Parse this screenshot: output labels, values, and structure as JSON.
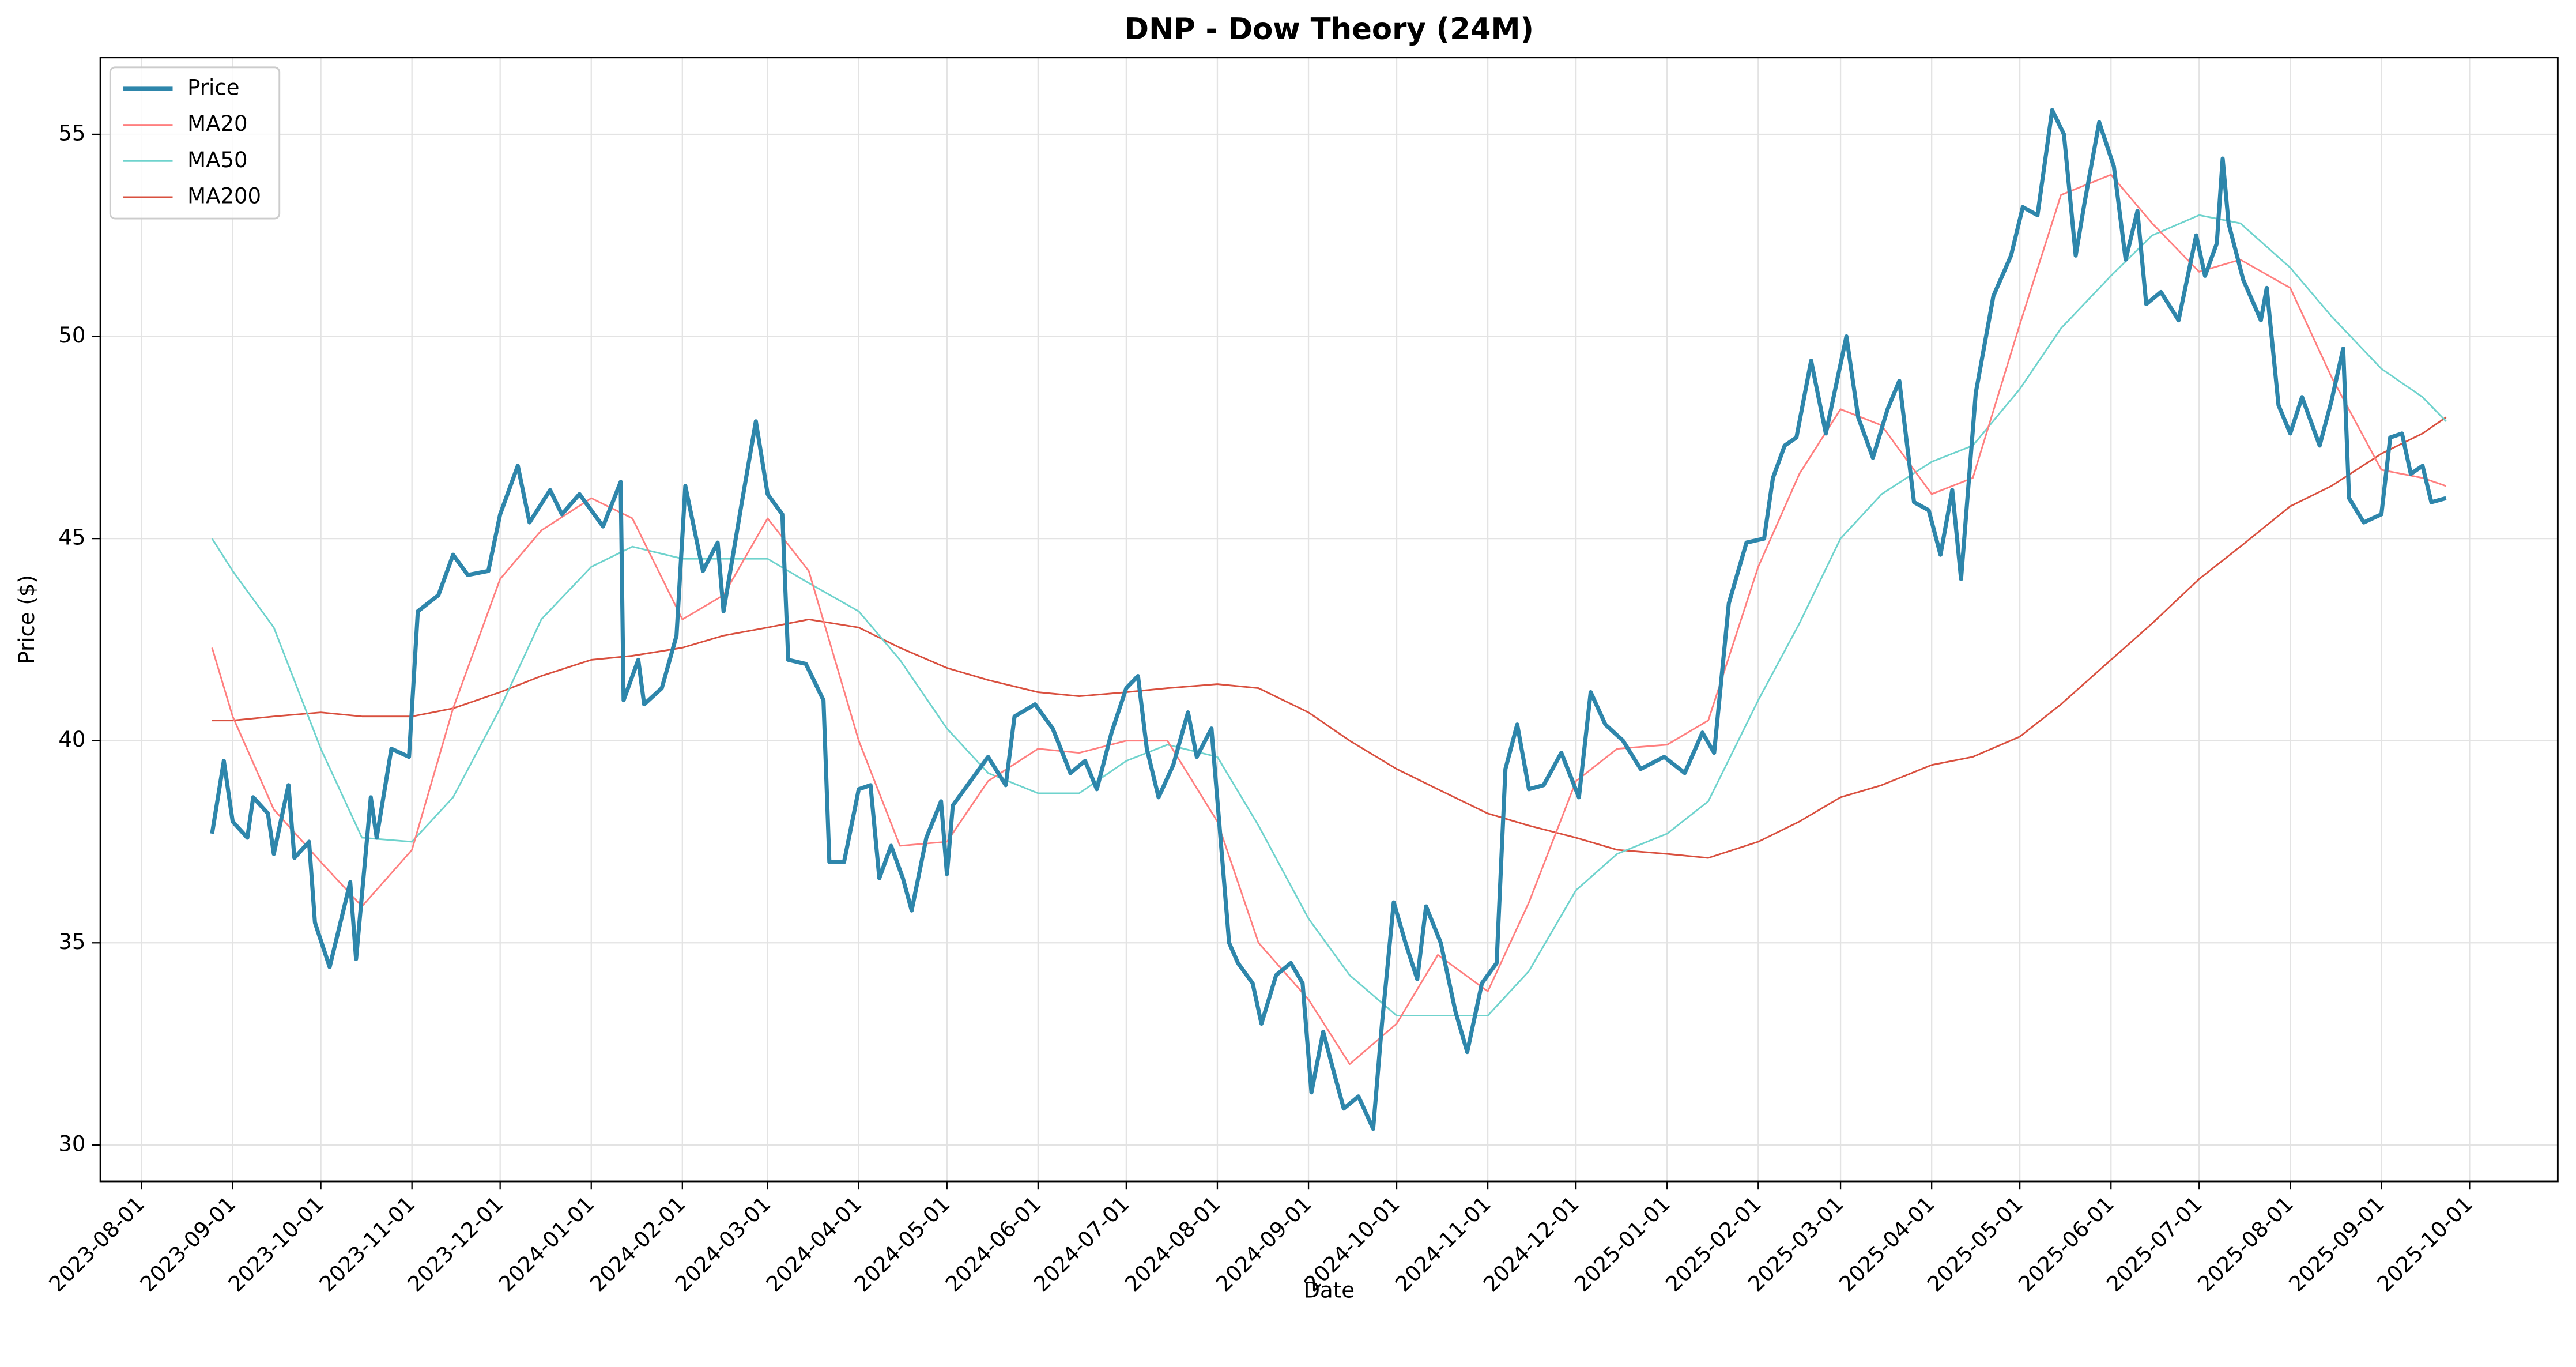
{
  "chart_data": {
    "type": "line",
    "title": "DNP - Dow Theory (24M)",
    "x_label": "Date",
    "y_label": "Price ($)",
    "xlim": [
      "2023-07-18",
      "2025-10-31"
    ],
    "xticks": [
      "2023-08-01",
      "2023-09-01",
      "2023-10-01",
      "2023-11-01",
      "2023-12-01",
      "2024-01-01",
      "2024-02-01",
      "2024-03-01",
      "2024-04-01",
      "2024-05-01",
      "2024-06-01",
      "2024-07-01",
      "2024-08-01",
      "2024-09-01",
      "2024-10-01",
      "2024-11-01",
      "2024-12-01",
      "2025-01-01",
      "2025-02-01",
      "2025-03-01",
      "2025-04-01",
      "2025-05-01",
      "2025-06-01",
      "2025-07-01",
      "2025-08-01",
      "2025-09-01",
      "2025-10-01"
    ],
    "ylim": [
      29.1,
      56.9
    ],
    "yticks": [
      30,
      35,
      40,
      45,
      50,
      55
    ],
    "grid": true,
    "legend": "upper left",
    "series": [
      {
        "name": "Price",
        "color": "#2e86ab",
        "width": 2.5,
        "x": [
          "2023-08-25",
          "2023-08-29",
          "2023-09-01",
          "2023-09-06",
          "2023-09-08",
          "2023-09-13",
          "2023-09-15",
          "2023-09-20",
          "2023-09-22",
          "2023-09-27",
          "2023-09-29",
          "2023-10-04",
          "2023-10-11",
          "2023-10-13",
          "2023-10-18",
          "2023-10-20",
          "2023-10-25",
          "2023-10-31",
          "2023-11-03",
          "2023-11-10",
          "2023-11-15",
          "2023-11-20",
          "2023-11-27",
          "2023-12-01",
          "2023-12-07",
          "2023-12-11",
          "2023-12-18",
          "2023-12-22",
          "2023-12-28",
          "2024-01-05",
          "2024-01-11",
          "2024-01-12",
          "2024-01-17",
          "2024-01-19",
          "2024-01-25",
          "2024-01-30",
          "2024-02-02",
          "2024-02-08",
          "2024-02-13",
          "2024-02-15",
          "2024-02-21",
          "2024-02-26",
          "2024-03-01",
          "2024-03-06",
          "2024-03-08",
          "2024-03-14",
          "2024-03-20",
          "2024-03-22",
          "2024-03-27",
          "2024-04-01",
          "2024-04-05",
          "2024-04-08",
          "2024-04-12",
          "2024-04-16",
          "2024-04-19",
          "2024-04-24",
          "2024-04-29",
          "2024-05-01",
          "2024-05-03",
          "2024-05-08",
          "2024-05-15",
          "2024-05-21",
          "2024-05-24",
          "2024-05-31",
          "2024-06-06",
          "2024-06-12",
          "2024-06-17",
          "2024-06-21",
          "2024-06-26",
          "2024-07-01",
          "2024-07-05",
          "2024-07-08",
          "2024-07-12",
          "2024-07-17",
          "2024-07-22",
          "2024-07-25",
          "2024-07-30",
          "2024-08-05",
          "2024-08-08",
          "2024-08-13",
          "2024-08-16",
          "2024-08-21",
          "2024-08-26",
          "2024-08-30",
          "2024-09-02",
          "2024-09-06",
          "2024-09-10",
          "2024-09-13",
          "2024-09-18",
          "2024-09-23",
          "2024-09-26",
          "2024-09-30",
          "2024-10-04",
          "2024-10-08",
          "2024-10-11",
          "2024-10-16",
          "2024-10-21",
          "2024-10-25",
          "2024-10-30",
          "2024-11-04",
          "2024-11-07",
          "2024-11-11",
          "2024-11-15",
          "2024-11-20",
          "2024-11-26",
          "2024-12-02",
          "2024-12-06",
          "2024-12-11",
          "2024-12-17",
          "2024-12-23",
          "2024-12-31",
          "2025-01-07",
          "2025-01-13",
          "2025-01-17",
          "2025-01-22",
          "2025-01-28",
          "2025-02-03",
          "2025-02-06",
          "2025-02-10",
          "2025-02-14",
          "2025-02-19",
          "2025-02-24",
          "2025-03-03",
          "2025-03-07",
          "2025-03-12",
          "2025-03-17",
          "2025-03-21",
          "2025-03-26",
          "2025-03-31",
          "2025-04-04",
          "2025-04-08",
          "2025-04-11",
          "2025-04-16",
          "2025-04-22",
          "2025-04-28",
          "2025-05-02",
          "2025-05-07",
          "2025-05-12",
          "2025-05-16",
          "2025-05-20",
          "2025-05-23",
          "2025-05-28",
          "2025-06-02",
          "2025-06-06",
          "2025-06-10",
          "2025-06-13",
          "2025-06-18",
          "2025-06-24",
          "2025-06-30",
          "2025-07-03",
          "2025-07-07",
          "2025-07-09",
          "2025-07-11",
          "2025-07-16",
          "2025-07-22",
          "2025-07-24",
          "2025-07-28",
          "2025-08-01",
          "2025-08-05",
          "2025-08-11",
          "2025-08-15",
          "2025-08-19",
          "2025-08-21",
          "2025-08-26",
          "2025-09-01",
          "2025-09-04",
          "2025-09-08",
          "2025-09-11",
          "2025-09-15",
          "2025-09-18",
          "2025-09-23"
        ],
        "values": [
          37.7,
          39.5,
          38.0,
          37.6,
          38.6,
          38.2,
          37.2,
          38.9,
          37.1,
          37.5,
          35.5,
          34.4,
          36.5,
          34.6,
          38.6,
          37.6,
          39.8,
          39.6,
          43.2,
          43.6,
          44.6,
          44.1,
          44.2,
          45.6,
          46.8,
          45.4,
          46.2,
          45.6,
          46.1,
          45.3,
          46.4,
          41.0,
          42.0,
          40.9,
          41.3,
          42.6,
          46.3,
          44.2,
          44.9,
          43.2,
          45.8,
          47.9,
          46.1,
          45.6,
          42.0,
          41.9,
          41.0,
          37.0,
          37.0,
          38.8,
          38.9,
          36.6,
          37.4,
          36.6,
          35.8,
          37.6,
          38.5,
          36.7,
          38.4,
          38.9,
          39.6,
          38.9,
          40.6,
          40.9,
          40.3,
          39.2,
          39.5,
          38.8,
          40.2,
          41.3,
          41.6,
          39.8,
          38.6,
          39.4,
          40.7,
          39.6,
          40.3,
          35.0,
          34.5,
          34.0,
          33.0,
          34.2,
          34.5,
          34.0,
          31.3,
          32.8,
          31.7,
          30.9,
          31.2,
          30.4,
          33.0,
          36.0,
          35.0,
          34.1,
          35.9,
          35.0,
          33.3,
          32.3,
          34.0,
          34.5,
          39.3,
          40.4,
          38.8,
          38.9,
          39.7,
          38.6,
          41.2,
          40.4,
          40.0,
          39.3,
          39.6,
          39.2,
          40.2,
          39.7,
          43.4,
          44.9,
          45.0,
          46.5,
          47.3,
          47.5,
          49.4,
          47.6,
          50.0,
          48.0,
          47.0,
          48.2,
          48.9,
          45.9,
          45.7,
          44.6,
          46.2,
          44.0,
          48.6,
          51.0,
          52.0,
          53.2,
          53.0,
          55.6,
          55.0,
          52.0,
          53.3,
          55.3,
          54.2,
          51.9,
          53.1,
          50.8,
          51.1,
          50.4,
          52.5,
          51.5,
          52.3,
          54.4,
          52.8,
          51.4,
          50.4,
          51.2,
          48.3,
          47.6,
          48.5,
          47.3,
          48.4,
          49.7,
          46.0,
          45.4,
          45.6,
          47.5,
          47.6,
          46.6,
          46.8,
          45.9,
          46.0
        ]
      },
      {
        "name": "MA20",
        "color": "#ff7f7f",
        "width": 1,
        "x": [
          "2023-08-25",
          "2023-09-01",
          "2023-09-15",
          "2023-10-01",
          "2023-10-15",
          "2023-11-01",
          "2023-11-15",
          "2023-12-01",
          "2023-12-15",
          "2024-01-01",
          "2024-01-15",
          "2024-02-01",
          "2024-02-15",
          "2024-03-01",
          "2024-03-15",
          "2024-04-01",
          "2024-04-15",
          "2024-05-01",
          "2024-05-15",
          "2024-06-01",
          "2024-06-15",
          "2024-07-01",
          "2024-07-15",
          "2024-08-01",
          "2024-08-15",
          "2024-09-01",
          "2024-09-15",
          "2024-10-01",
          "2024-10-15",
          "2024-11-01",
          "2024-11-15",
          "2024-12-01",
          "2024-12-15",
          "2025-01-01",
          "2025-01-15",
          "2025-02-01",
          "2025-02-15",
          "2025-03-01",
          "2025-03-15",
          "2025-04-01",
          "2025-04-15",
          "2025-05-01",
          "2025-05-15",
          "2025-06-01",
          "2025-06-15",
          "2025-07-01",
          "2025-07-15",
          "2025-08-01",
          "2025-08-15",
          "2025-09-01",
          "2025-09-15",
          "2025-09-23"
        ],
        "values": [
          42.3,
          40.6,
          38.3,
          37.0,
          35.9,
          37.3,
          40.8,
          44.0,
          45.2,
          46.0,
          45.5,
          43.0,
          43.6,
          45.5,
          44.2,
          40.0,
          37.4,
          37.5,
          39.0,
          39.8,
          39.7,
          40.0,
          40.0,
          38.0,
          35.0,
          33.6,
          32.0,
          33.0,
          34.7,
          33.8,
          36.0,
          39.0,
          39.8,
          39.9,
          40.5,
          44.3,
          46.6,
          48.2,
          47.8,
          46.1,
          46.5,
          50.3,
          53.5,
          54.0,
          52.8,
          51.6,
          51.9,
          51.2,
          49.0,
          46.7,
          46.5,
          46.3
        ]
      },
      {
        "name": "MA50",
        "color": "#6fd3cd",
        "width": 1,
        "x": [
          "2023-08-25",
          "2023-09-01",
          "2023-09-15",
          "2023-10-01",
          "2023-10-15",
          "2023-11-01",
          "2023-11-15",
          "2023-12-01",
          "2023-12-15",
          "2024-01-01",
          "2024-01-15",
          "2024-02-01",
          "2024-02-15",
          "2024-03-01",
          "2024-03-15",
          "2024-04-01",
          "2024-04-15",
          "2024-05-01",
          "2024-05-15",
          "2024-06-01",
          "2024-06-15",
          "2024-07-01",
          "2024-07-15",
          "2024-08-01",
          "2024-08-15",
          "2024-09-01",
          "2024-09-15",
          "2024-10-01",
          "2024-10-15",
          "2024-11-01",
          "2024-11-15",
          "2024-12-01",
          "2024-12-15",
          "2025-01-01",
          "2025-01-15",
          "2025-02-01",
          "2025-02-15",
          "2025-03-01",
          "2025-03-15",
          "2025-04-01",
          "2025-04-15",
          "2025-05-01",
          "2025-05-15",
          "2025-06-01",
          "2025-06-15",
          "2025-07-01",
          "2025-07-15",
          "2025-08-01",
          "2025-08-15",
          "2025-09-01",
          "2025-09-15",
          "2025-09-23"
        ],
        "values": [
          45.0,
          44.2,
          42.8,
          39.8,
          37.6,
          37.5,
          38.6,
          40.8,
          43.0,
          44.3,
          44.8,
          44.5,
          44.5,
          44.5,
          43.9,
          43.2,
          42.0,
          40.3,
          39.2,
          38.7,
          38.7,
          39.5,
          39.9,
          39.6,
          37.9,
          35.6,
          34.2,
          33.2,
          33.2,
          33.2,
          34.3,
          36.3,
          37.2,
          37.7,
          38.5,
          41.0,
          42.9,
          45.0,
          46.1,
          46.9,
          47.3,
          48.7,
          50.2,
          51.5,
          52.5,
          53.0,
          52.8,
          51.7,
          50.5,
          49.2,
          48.5,
          47.9
        ]
      },
      {
        "name": "MA200",
        "color": "#d9503f",
        "width": 1,
        "x": [
          "2023-08-25",
          "2023-09-01",
          "2023-09-15",
          "2023-10-01",
          "2023-10-15",
          "2023-11-01",
          "2023-11-15",
          "2023-12-01",
          "2023-12-15",
          "2024-01-01",
          "2024-01-15",
          "2024-02-01",
          "2024-02-15",
          "2024-03-01",
          "2024-03-15",
          "2024-04-01",
          "2024-04-15",
          "2024-05-01",
          "2024-05-15",
          "2024-06-01",
          "2024-06-15",
          "2024-07-01",
          "2024-07-15",
          "2024-08-01",
          "2024-08-15",
          "2024-09-01",
          "2024-09-15",
          "2024-10-01",
          "2024-10-15",
          "2024-11-01",
          "2024-11-15",
          "2024-12-01",
          "2024-12-15",
          "2025-01-01",
          "2025-01-15",
          "2025-02-01",
          "2025-02-15",
          "2025-03-01",
          "2025-03-15",
          "2025-04-01",
          "2025-04-15",
          "2025-05-01",
          "2025-05-15",
          "2025-06-01",
          "2025-06-15",
          "2025-07-01",
          "2025-07-15",
          "2025-08-01",
          "2025-08-15",
          "2025-09-01",
          "2025-09-15",
          "2025-09-23"
        ],
        "values": [
          40.5,
          40.5,
          40.6,
          40.7,
          40.6,
          40.6,
          40.8,
          41.2,
          41.6,
          42.0,
          42.1,
          42.3,
          42.6,
          42.8,
          43.0,
          42.8,
          42.3,
          41.8,
          41.5,
          41.2,
          41.1,
          41.2,
          41.3,
          41.4,
          41.3,
          40.7,
          40.0,
          39.3,
          38.8,
          38.2,
          37.9,
          37.6,
          37.3,
          37.2,
          37.1,
          37.5,
          38.0,
          38.6,
          38.9,
          39.4,
          39.6,
          40.1,
          40.9,
          42.0,
          42.9,
          44.0,
          44.8,
          45.8,
          46.3,
          47.1,
          47.6,
          48.0
        ]
      }
    ]
  }
}
